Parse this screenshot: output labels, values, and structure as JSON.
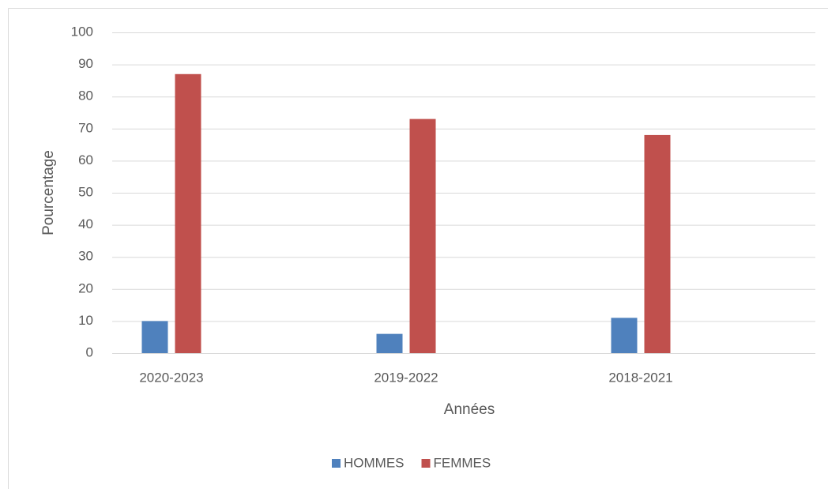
{
  "chart_data": {
    "type": "bar",
    "categories": [
      "2020-2023",
      "2019-2022",
      "2018-2021"
    ],
    "series": [
      {
        "name": "HOMMES",
        "color": "#4f81bd",
        "values": [
          10,
          6,
          11
        ]
      },
      {
        "name": "FEMMES",
        "color": "#c0504d",
        "values": [
          87,
          73,
          68
        ]
      }
    ],
    "xlabel": "Années",
    "ylabel": "Pourcentage",
    "ylim": [
      0,
      100
    ],
    "yticks": [
      0,
      10,
      20,
      30,
      40,
      50,
      60,
      70,
      80,
      90,
      100
    ],
    "grid": true,
    "legend": "bottom"
  }
}
